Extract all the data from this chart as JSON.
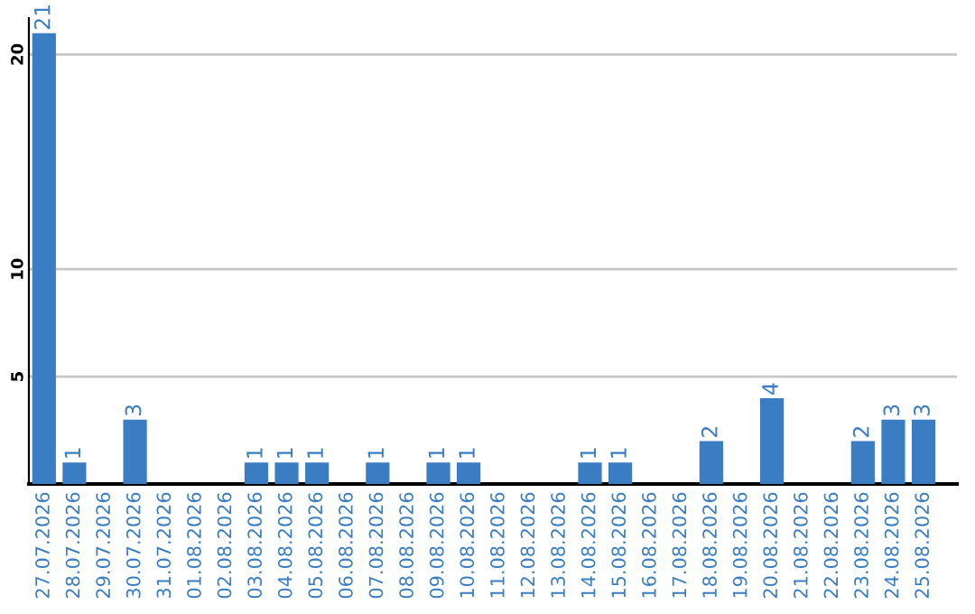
{
  "chart_data": {
    "type": "bar",
    "categories": [
      "27.07.2026",
      "28.07.2026",
      "29.07.2026",
      "30.07.2026",
      "31.07.2026",
      "01.08.2026",
      "02.08.2026",
      "03.08.2026",
      "04.08.2026",
      "05.08.2026",
      "06.08.2026",
      "07.08.2026",
      "08.08.2026",
      "09.08.2026",
      "10.08.2026",
      "11.08.2026",
      "12.08.2026",
      "13.08.2026",
      "14.08.2026",
      "15.08.2026",
      "16.08.2026",
      "17.08.2026",
      "18.08.2026",
      "19.08.2026",
      "20.08.2026",
      "21.08.2026",
      "22.08.2026",
      "23.08.2026",
      "24.08.2026",
      "25.08.2026"
    ],
    "values": [
      21,
      1,
      0,
      3,
      0,
      0,
      0,
      1,
      1,
      1,
      0,
      1,
      0,
      1,
      1,
      0,
      0,
      0,
      1,
      1,
      0,
      0,
      2,
      0,
      4,
      0,
      0,
      2,
      3,
      3
    ],
    "value_labels": [
      "21",
      "1",
      null,
      "3",
      null,
      null,
      null,
      "1",
      "1",
      "1",
      null,
      "1",
      null,
      "1",
      "1",
      null,
      null,
      null,
      "1",
      "1",
      null,
      null,
      "2",
      null,
      "4",
      null,
      null,
      "2",
      "3",
      "3"
    ],
    "color": "#3b7dc2",
    "ylim": [
      0,
      21.7
    ],
    "yticks": [
      5,
      10,
      20
    ],
    "grid": "y",
    "legend": false
  }
}
